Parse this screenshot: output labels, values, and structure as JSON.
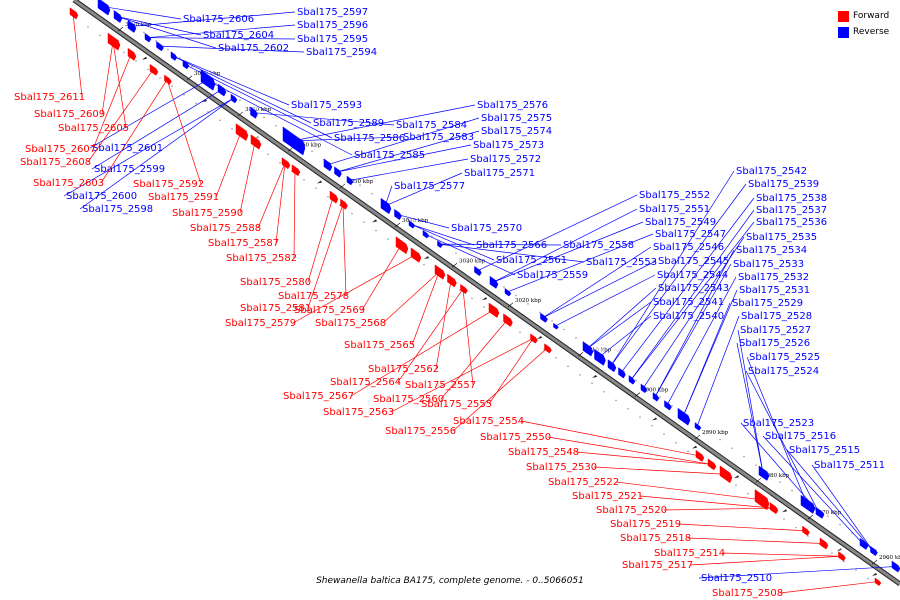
{
  "title": "Shewanella baltica BA175, complete genome. - 0..5066051",
  "colors": {
    "forward": "#ff0000",
    "reverse": "#0000ff",
    "backbone": "#888888",
    "text": "#000000"
  },
  "legend": [
    {
      "label": "Forward",
      "color": "#ff0000"
    },
    {
      "label": "Reverse",
      "color": "#0000ff"
    }
  ],
  "kbp_ticks": [
    "3090 kbp",
    "3080 kbp",
    "3070 kbp",
    "3060 kbp",
    "3050 kbp",
    "3040 kbp",
    "3030 kbp",
    "3020 kbp",
    "3010 kbp",
    "3000 kbp",
    "2990 kbp",
    "2980 kbp",
    "2970 kbp",
    "2960 kbp"
  ],
  "reverse_genes": [
    "Sbal175_2606",
    "Sbal175_2604",
    "Sbal175_2602",
    "Sbal175_2597",
    "Sbal175_2596",
    "Sbal175_2595",
    "Sbal175_2594",
    "Sbal175_2593",
    "Sbal175_2589",
    "Sbal175_2586",
    "Sbal175_2585",
    "Sbal175_2601",
    "Sbal175_2599",
    "Sbal175_2600",
    "Sbal175_2598",
    "Sbal175_2584",
    "Sbal175_2583",
    "Sbal175_2576",
    "Sbal175_2575",
    "Sbal175_2574",
    "Sbal175_2573",
    "Sbal175_2572",
    "Sbal175_2571",
    "Sbal175_2577",
    "Sbal175_2570",
    "Sbal175_2566",
    "Sbal175_2561",
    "Sbal175_2559",
    "Sbal175_2558",
    "Sbal175_2553",
    "Sbal175_2552",
    "Sbal175_2551",
    "Sbal175_2549",
    "Sbal175_2547",
    "Sbal175_2546",
    "Sbal175_2545",
    "Sbal175_2544",
    "Sbal175_2543",
    "Sbal175_2541",
    "Sbal175_2540",
    "Sbal175_2542",
    "Sbal175_2539",
    "Sbal175_2538",
    "Sbal175_2537",
    "Sbal175_2536",
    "Sbal175_2535",
    "Sbal175_2534",
    "Sbal175_2533",
    "Sbal175_2532",
    "Sbal175_2531",
    "Sbal175_2529",
    "Sbal175_2528",
    "Sbal175_2527",
    "Sbal175_2526",
    "Sbal175_2525",
    "Sbal175_2524",
    "Sbal175_2523",
    "Sbal175_2516",
    "Sbal175_2515",
    "Sbal175_2511",
    "Sbal175_2510"
  ],
  "forward_genes": [
    "Sbal175_2611",
    "Sbal175_2609",
    "Sbal175_2605",
    "Sbal175_2607",
    "Sbal175_2608",
    "Sbal175_2603",
    "Sbal175_2592",
    "Sbal175_2591",
    "Sbal175_2590",
    "Sbal175_2588",
    "Sbal175_2587",
    "Sbal175_2582",
    "Sbal175_2580",
    "Sbal175_2578",
    "Sbal175_2581",
    "Sbal175_2569",
    "Sbal175_2579",
    "Sbal175_2568",
    "Sbal175_2565",
    "Sbal175_2562",
    "Sbal175_2564",
    "Sbal175_2557",
    "Sbal175_2567",
    "Sbal175_2560",
    "Sbal175_2563",
    "Sbal175_2555",
    "Sbal175_2556",
    "Sbal175_2554",
    "Sbal175_2550",
    "Sbal175_2548",
    "Sbal175_2530",
    "Sbal175_2522",
    "Sbal175_2521",
    "Sbal175_2520",
    "Sbal175_2519",
    "Sbal175_2518",
    "Sbal175_2514",
    "Sbal175_2517",
    "Sbal175_2508"
  ]
}
